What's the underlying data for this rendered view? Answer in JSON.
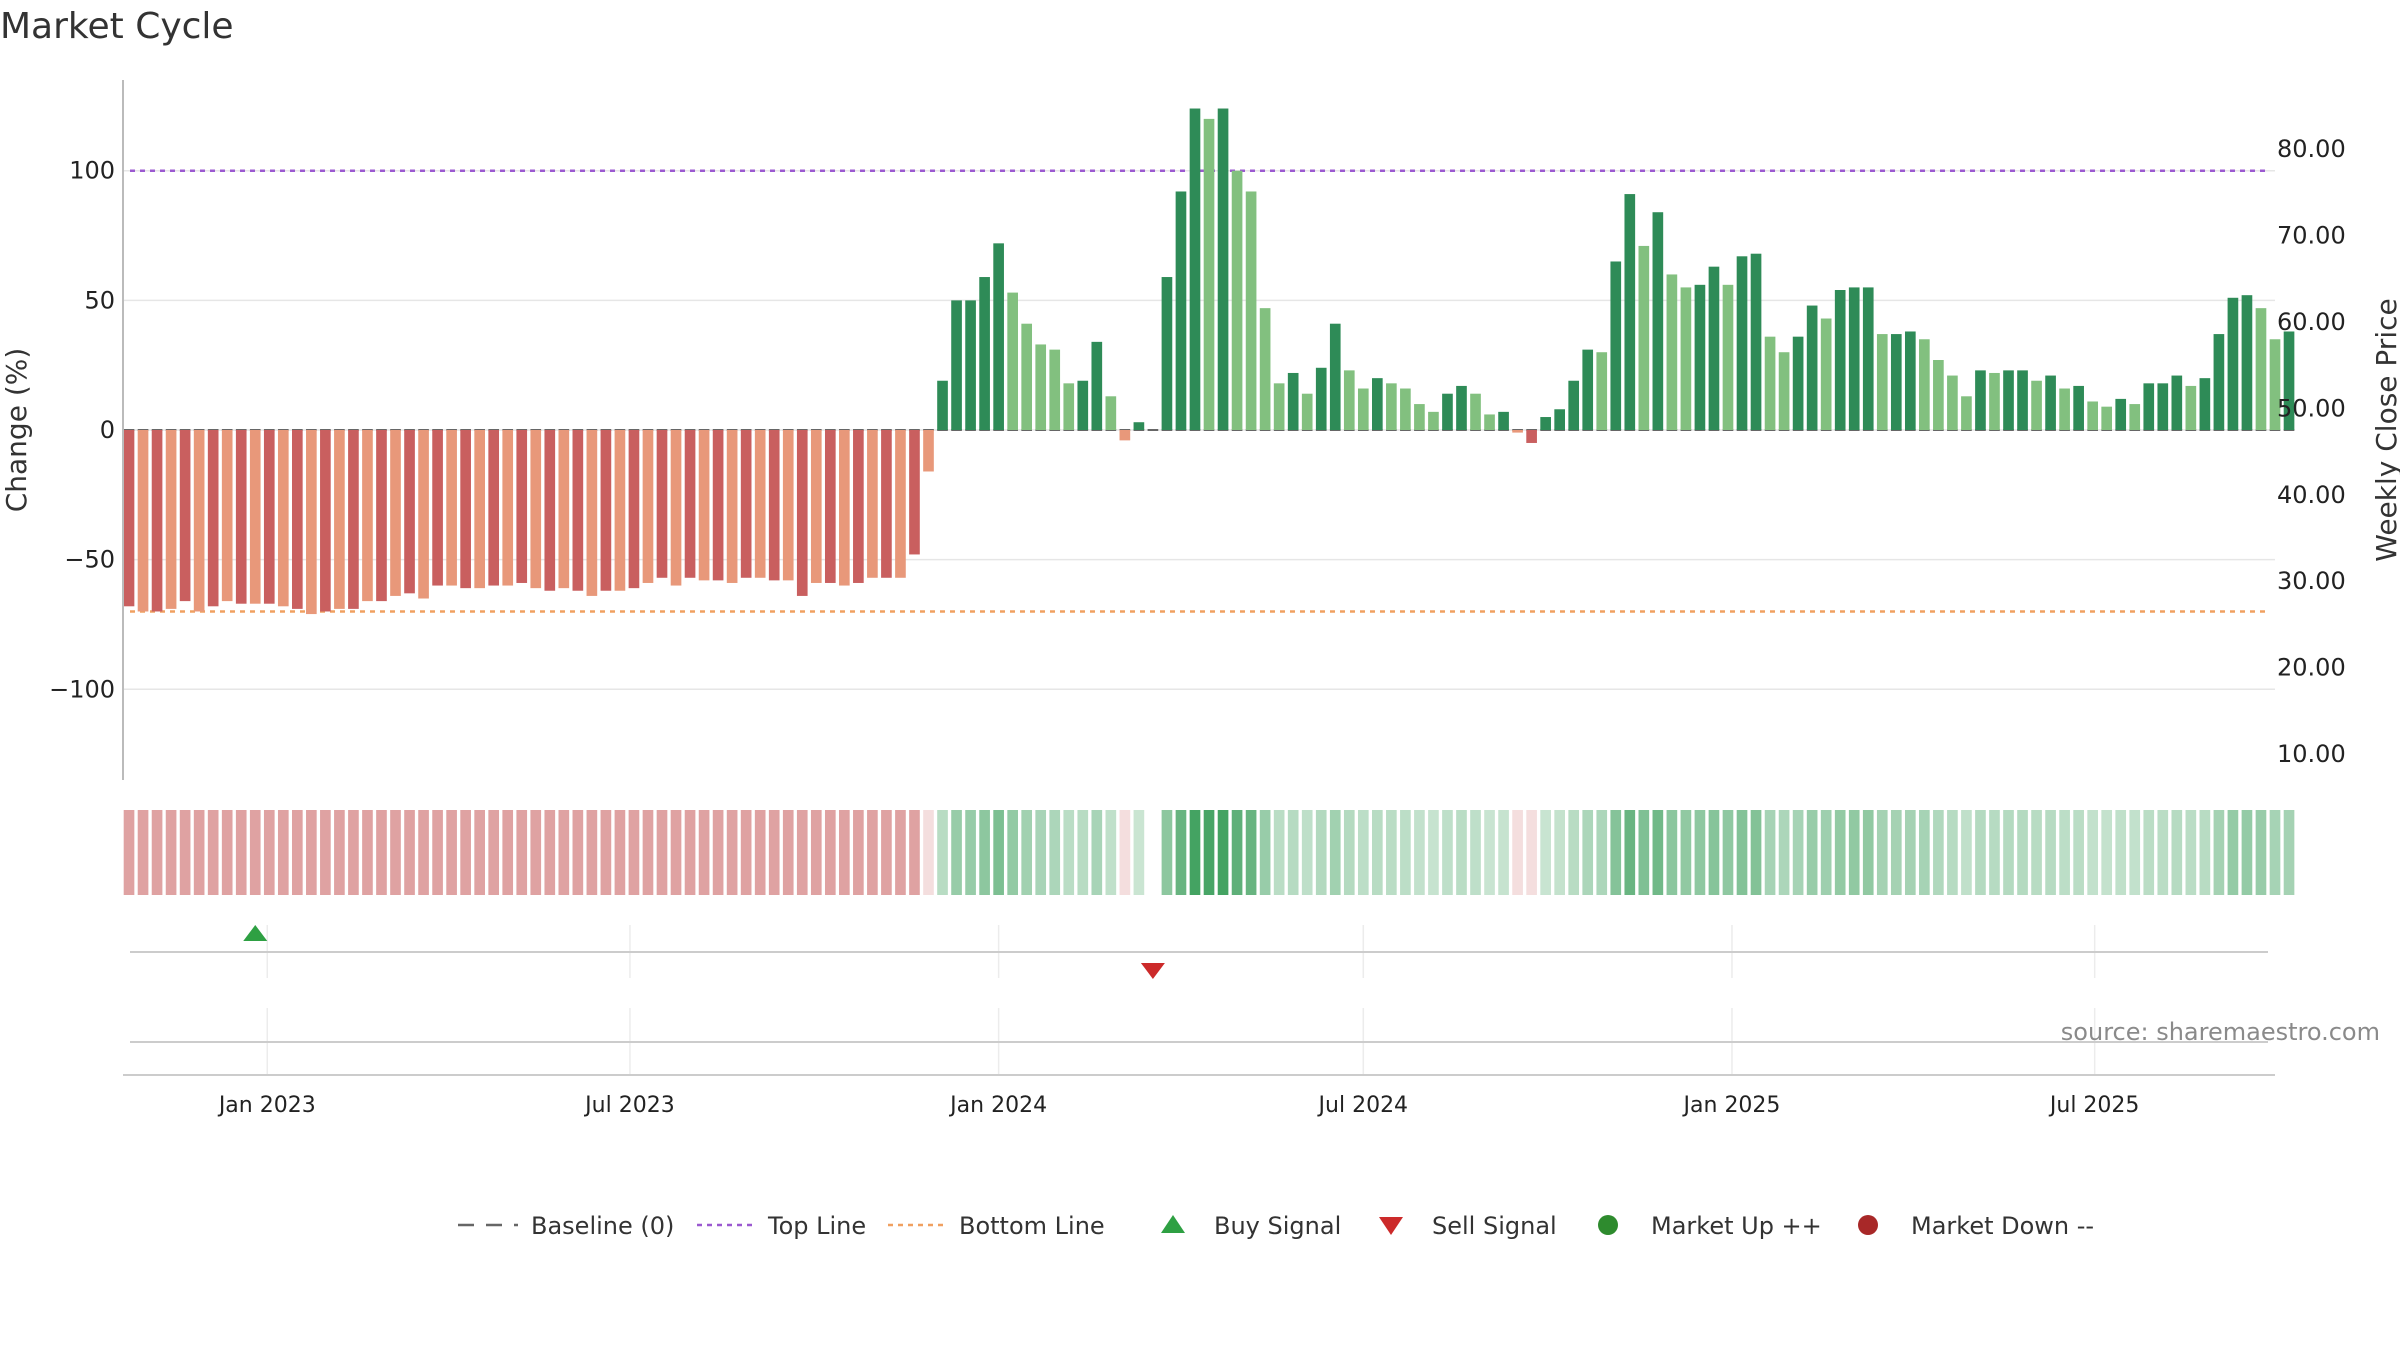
{
  "chart_data": {
    "type": "bar",
    "title": "Market Cycle",
    "ylabel_left": "Change (%)",
    "ylabel_right": "Weekly Close Price",
    "source": "source: sharemaestro.com",
    "left_axis": {
      "ylim": [
        -135,
        135
      ],
      "ticks": [
        100,
        50,
        0,
        -50,
        -100
      ],
      "tick_labels": [
        "100",
        "50",
        "0",
        "−50",
        "−100"
      ]
    },
    "right_axis": {
      "ylim": [
        7.0,
        88.0
      ],
      "ticks": [
        80,
        70,
        60,
        50,
        40,
        30,
        20,
        10
      ],
      "tick_labels": [
        "80.00",
        "70.00",
        "60.00",
        "50.00",
        "40.00",
        "30.00",
        "20.00",
        "10.00"
      ]
    },
    "x_range": [
      "2022-10-21",
      "2025-09-29"
    ],
    "x_ticks": [
      {
        "date": "2023-01-01",
        "label": "Jan 2023"
      },
      {
        "date": "2023-07-01",
        "label": "Jul 2023"
      },
      {
        "date": "2024-01-01",
        "label": "Jan 2024"
      },
      {
        "date": "2024-07-01",
        "label": "Jul 2024"
      },
      {
        "date": "2025-01-01",
        "label": "Jan 2025"
      },
      {
        "date": "2025-07-01",
        "label": "Jul 2025"
      }
    ],
    "weeks": {
      "start": "2022-10-24",
      "interval_days": 7,
      "values": [
        -68,
        -70,
        -70,
        -69,
        -66,
        -70,
        -68,
        -66,
        -67,
        -67,
        -67,
        -68,
        -69,
        -71,
        -70,
        -69,
        -69,
        -66,
        -66,
        -64,
        -63,
        -65,
        -60,
        -60,
        -61,
        -61,
        -60,
        -60,
        -59,
        -61,
        -62,
        -61,
        -62,
        -64,
        -62,
        -62,
        -61,
        -59,
        -57,
        -60,
        -57,
        -58,
        -58,
        -59,
        -57,
        -57,
        -58,
        -58,
        -64,
        -59,
        -59,
        -60,
        -59,
        -57,
        -57,
        -57,
        -48,
        -16,
        19,
        50,
        50,
        59,
        72,
        53,
        41,
        33,
        31,
        18,
        19,
        34,
        13,
        -4,
        3,
        null,
        59,
        92,
        124,
        120,
        124,
        100,
        92,
        47,
        18,
        22,
        14,
        24,
        41,
        23,
        16,
        20,
        18,
        16,
        10,
        7,
        14,
        17,
        14,
        6,
        7,
        -1,
        -5,
        5,
        8,
        19,
        31,
        30,
        65,
        91,
        71,
        84,
        60,
        55,
        56,
        63,
        56,
        67,
        68,
        36,
        30,
        36,
        48,
        43,
        54,
        55,
        55,
        37,
        37,
        38,
        35,
        27,
        21,
        13,
        23,
        22,
        23,
        23,
        19,
        21,
        16,
        17,
        11,
        9,
        12,
        10,
        18,
        18,
        21,
        17,
        20,
        37,
        51,
        52,
        47,
        35,
        38
      ]
    },
    "ribbon_alphas": [
      0.55,
      0.58,
      0.55,
      0.58,
      0.55,
      0.58,
      0.55,
      0.58,
      0.55,
      0.58,
      0.55,
      0.58,
      0.55,
      0.58,
      0.55,
      0.58,
      0.55,
      0.58,
      0.55,
      0.58,
      0.55,
      0.58,
      0.55,
      0.58,
      0.55,
      0.58,
      0.55,
      0.58,
      0.55,
      0.58,
      0.55,
      0.58,
      0.55,
      0.58,
      0.55,
      0.58,
      0.55,
      0.58,
      0.55,
      0.58,
      0.55,
      0.58,
      0.55,
      0.58,
      0.55,
      0.58,
      0.55,
      0.58,
      0.55,
      0.58,
      0.55,
      0.58,
      0.55,
      0.58,
      0.55,
      0.58,
      0.55,
      0.58
    ],
    "lines": {
      "top_line": {
        "value": 100,
        "color": "#9b59d0"
      },
      "bottom_line": {
        "value": -70,
        "color": "#f0a060"
      },
      "baseline": {
        "value": 0,
        "color": "#666666"
      }
    },
    "signals": [
      {
        "type": "buy",
        "date": "2022-12-26",
        "color": "#2ea043"
      },
      {
        "type": "sell",
        "date": "2024-03-18",
        "color": "#cc2a2a"
      }
    ],
    "legend": [
      {
        "key": "baseline",
        "label": "Baseline (0)",
        "symbol": "dash",
        "color": "#666666"
      },
      {
        "key": "top",
        "label": "Top Line",
        "symbol": "dotted",
        "color": "#9b59d0"
      },
      {
        "key": "bottom",
        "label": "Bottom Line",
        "symbol": "dotted",
        "color": "#f0a060"
      },
      {
        "key": "buy",
        "label": "Buy Signal",
        "symbol": "triangle-up",
        "color": "#2ea043"
      },
      {
        "key": "sell",
        "label": "Sell Signal",
        "symbol": "triangle-down",
        "color": "#cc2a2a"
      },
      {
        "key": "up",
        "label": "Market Up ++",
        "symbol": "circle",
        "color": "#2e8b2e"
      },
      {
        "key": "down",
        "label": "Market Down --",
        "symbol": "circle",
        "color": "#a82828"
      }
    ],
    "colors": {
      "pos_dark": "#2e8b57",
      "pos_light": "#82c07f",
      "neg_dark": "#c95f5f",
      "neg_light": "#e8987a",
      "ribbon_pos": "#3a9e5a",
      "ribbon_neg": "#d27a7a",
      "grid": "#e6e6e6"
    }
  }
}
